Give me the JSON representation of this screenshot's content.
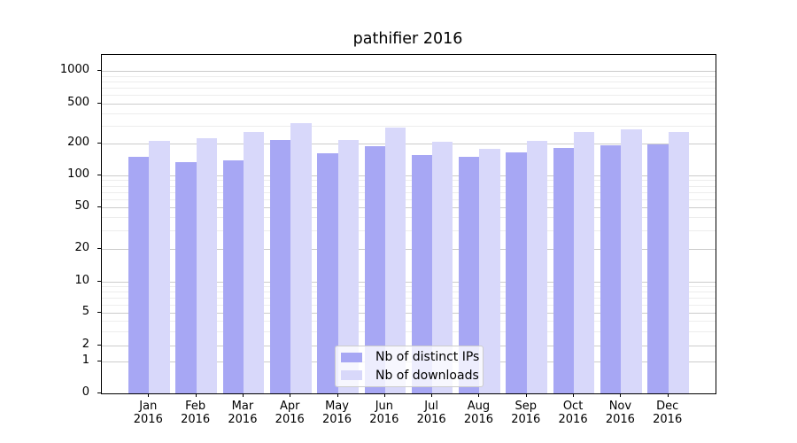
{
  "title": "pathifier 2016",
  "chart_data": {
    "type": "bar",
    "title": "pathifier 2016",
    "x_months": [
      "Jan",
      "Feb",
      "Mar",
      "Apr",
      "May",
      "Jun",
      "Jul",
      "Aug",
      "Sep",
      "Oct",
      "Nov",
      "Dec"
    ],
    "x_year": "2016",
    "series": [
      {
        "name": "Nb of distinct IPs",
        "color": "#a7a7f4",
        "values": [
          150,
          134,
          138,
          216,
          161,
          187,
          154,
          150,
          164,
          181,
          191,
          193
        ]
      },
      {
        "name": "Nb of downloads",
        "color": "#d8d8fa",
        "values": [
          209,
          225,
          257,
          320,
          216,
          288,
          208,
          177,
          209,
          257,
          275,
          260
        ]
      }
    ],
    "yscale": "symlog",
    "yticks": [
      0,
      1,
      2,
      5,
      10,
      20,
      50,
      100,
      200,
      500,
      1000
    ],
    "ylim": [
      0,
      1400
    ],
    "grid": true,
    "legend_position": "lower center"
  }
}
